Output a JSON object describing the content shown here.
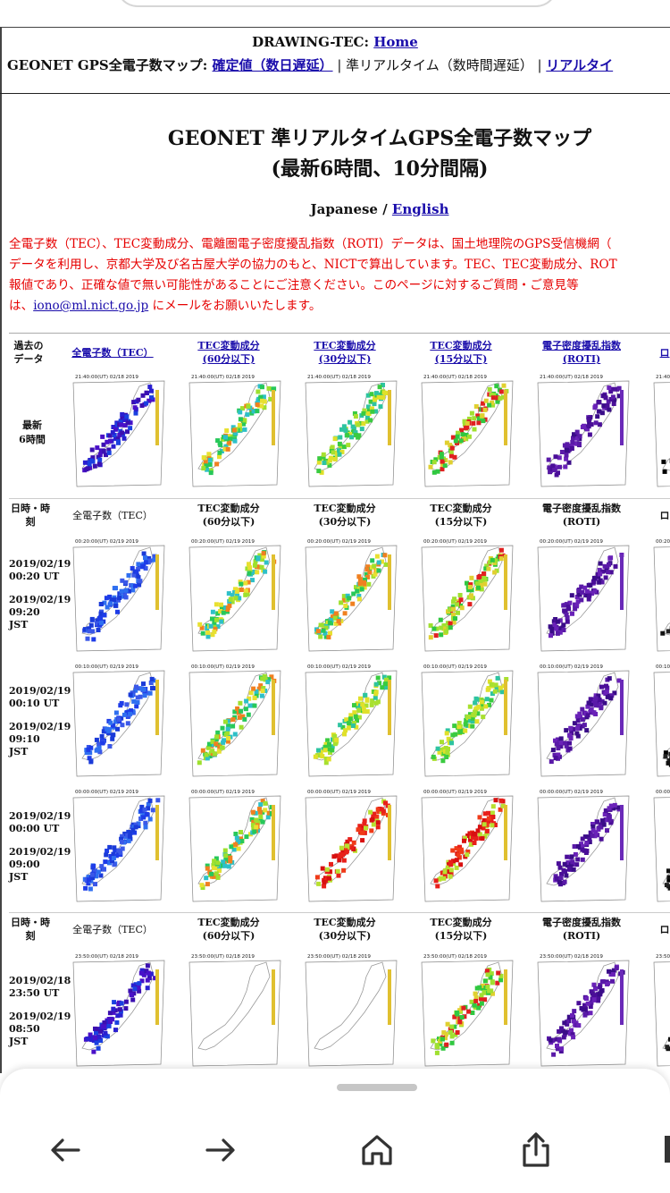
{
  "header": {
    "title_prefix": "DRAWING-TEC: ",
    "home_link": "Home",
    "nav_prefix": "GEONET GPS全電子数マップ: ",
    "link_confirmed": "確定値（数日遅延）",
    "sep1": " | ",
    "current": "準リアルタイム（数時間遅延）",
    "sep2": " | ",
    "link_realtime": "リアルタイ"
  },
  "page": {
    "title_line1": "GEONET 準リアルタイムGPS全電子数マップ",
    "title_line2": "(最新6時間、10分間隔)",
    "lang_current": "Japanese / ",
    "lang_link": "English"
  },
  "notice": {
    "line1": "全電子数（TEC）、TEC変動成分、電離圏電子密度擾乱指数（ROTI）データは、国土地理院のGPS受信機網（",
    "line2": "データを利用し、京都大学及び名古屋大学の協力のもと、NICTで算出しています。TEC、TEC変動成分、ROT",
    "line3": "報値であり、正確な値で無い可能性があることにご注意ください。このページに対するご質問・ご意見等",
    "line4_prefix": "は、",
    "email": "iono@ml.nict.go.jp",
    "line4_suffix": " にメールをお願いいたします。"
  },
  "table": {
    "top_header": {
      "past_data": [
        "過去の",
        "データ"
      ],
      "col_tec": "全電子数（TEC）",
      "col_60": [
        "TEC変動成分",
        "(60分以下)"
      ],
      "col_30": [
        "TEC変動成分",
        "(30分以下)"
      ],
      "col_15": [
        "TEC変動成分",
        "(15分以下)"
      ],
      "col_roti": [
        "電子密度擾乱指数",
        "(ROTI)"
      ],
      "col_extra": "ロ"
    },
    "latest_label": [
      "最新",
      "6時間"
    ],
    "sub_header": {
      "datetime": [
        "日時・時",
        "刻"
      ],
      "col_tec": "全電子数（TEC）",
      "col_60": [
        "TEC変動成分",
        "(60分以下)"
      ],
      "col_30": [
        "TEC変動成分",
        "(30分以下)"
      ],
      "col_15": [
        "TEC変動成分",
        "(15分以下)"
      ],
      "col_roti": [
        "電子密度擾乱指数",
        "(ROTI)"
      ],
      "col_extra": "ロ"
    },
    "rows": [
      {
        "ut": [
          "2019/02/19",
          "00:20 UT"
        ],
        "jst": [
          "2019/02/19",
          "09:20",
          "JST"
        ],
        "stamp": "00:20:00(UT) 02/19 2019"
      },
      {
        "ut": [
          "2019/02/19",
          "00:10 UT"
        ],
        "jst": [
          "2019/02/19",
          "09:10",
          "JST"
        ],
        "stamp": "00:10:00(UT) 02/19 2019"
      },
      {
        "ut": [
          "2019/02/19",
          "00:00 UT"
        ],
        "jst": [
          "2019/02/19",
          "09:00",
          "JST"
        ],
        "stamp": "00:00:00(UT) 02/19 2019"
      },
      {
        "ut": [
          "2019/02/18",
          "23:50 UT"
        ],
        "jst": [
          "2019/02/19",
          "08:50",
          "JST"
        ],
        "stamp": "23:50:00(UT) 02/18 2019"
      }
    ],
    "latest_stamp": "21:40:00(UT) 02/18 2019"
  },
  "bottom_nav": {
    "back": "back-arrow-icon",
    "forward": "forward-arrow-icon",
    "home": "home-icon",
    "share": "share-icon"
  }
}
